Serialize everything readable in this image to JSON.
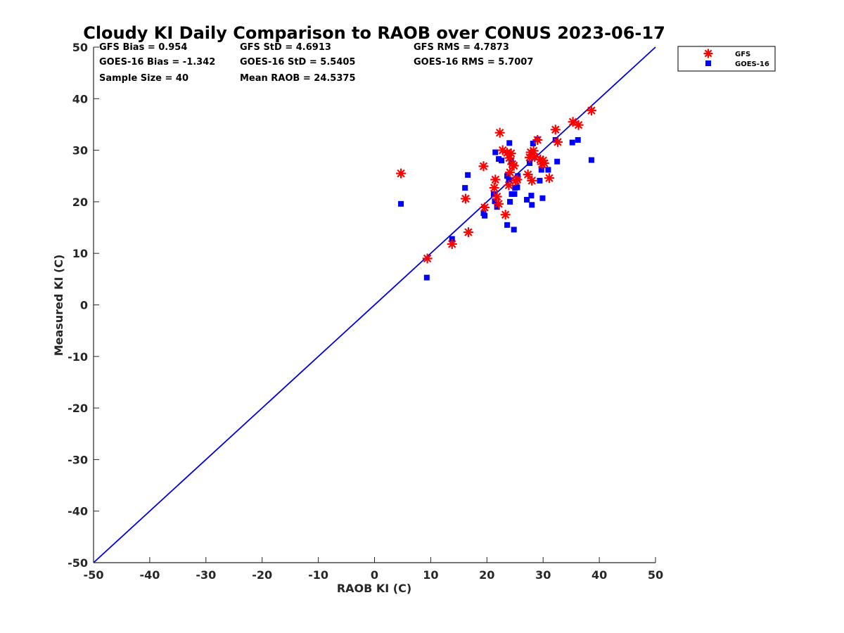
{
  "chart_data": {
    "type": "scatter",
    "title": "Cloudy KI Daily Comparison to RAOB over CONUS 2023-06-17",
    "xlabel": "RAOB KI (C)",
    "ylabel": "Measured KI (C)",
    "xlim": [
      -50,
      50
    ],
    "ylim": [
      -50,
      50
    ],
    "xticks": [
      "-50",
      "-40",
      "-30",
      "-20",
      "-10",
      "0",
      "10",
      "20",
      "30",
      "40",
      "50"
    ],
    "yticks": [
      "50",
      "40",
      "30",
      "20",
      "10",
      "0",
      "-10",
      "-20",
      "-30",
      "-40",
      "-50"
    ],
    "grid": false,
    "legend_position": "outside top-right",
    "reference_line": {
      "x": [
        -50,
        50
      ],
      "y": [
        -50,
        50
      ],
      "color": "#0000dd"
    },
    "stats": [
      "GFS Bias = 0.954",
      "GFS StD = 4.6913",
      "GFS RMS = 4.7873",
      "GOES-16 Bias = -1.342",
      "GOES-16 StD = 5.5405",
      "GOES-16 RMS = 5.7007",
      "Sample Size = 40",
      "Mean RAOB = 24.5375"
    ],
    "series": [
      {
        "name": "GFS",
        "marker": "asterisk",
        "color": "#ff0000",
        "points": [
          [
            4.7,
            25.5
          ],
          [
            9.4,
            9.0
          ],
          [
            13.8,
            11.8
          ],
          [
            16.2,
            20.6
          ],
          [
            16.7,
            14.1
          ],
          [
            19.4,
            26.9
          ],
          [
            19.6,
            18.9
          ],
          [
            21.3,
            22.7
          ],
          [
            21.5,
            24.3
          ],
          [
            21.8,
            21.0
          ],
          [
            22.1,
            19.6
          ],
          [
            22.3,
            33.4
          ],
          [
            22.8,
            30.0
          ],
          [
            23.3,
            17.5
          ],
          [
            23.6,
            29.5
          ],
          [
            23.9,
            23.2
          ],
          [
            24.1,
            25.7
          ],
          [
            24.3,
            29.4
          ],
          [
            24.5,
            27.3
          ],
          [
            24.8,
            27.0
          ],
          [
            25.1,
            24.1
          ],
          [
            25.4,
            24.3
          ],
          [
            27.3,
            25.3
          ],
          [
            27.6,
            28.6
          ],
          [
            27.8,
            29.6
          ],
          [
            28.0,
            24.1
          ],
          [
            28.3,
            29.9
          ],
          [
            28.5,
            28.7
          ],
          [
            29.0,
            32.0
          ],
          [
            29.5,
            28.2
          ],
          [
            29.8,
            27.3
          ],
          [
            30.0,
            28.0
          ],
          [
            30.2,
            27.5
          ],
          [
            31.1,
            24.6
          ],
          [
            32.2,
            34.0
          ],
          [
            32.6,
            31.6
          ],
          [
            35.3,
            35.5
          ],
          [
            36.3,
            34.9
          ],
          [
            38.6,
            37.7
          ],
          [
            24.0,
            28.5
          ]
        ]
      },
      {
        "name": "GOES-16",
        "marker": "square",
        "color": "#0000ff",
        "points": [
          [
            4.7,
            19.6
          ],
          [
            9.3,
            5.3
          ],
          [
            13.8,
            12.8
          ],
          [
            16.1,
            22.7
          ],
          [
            16.6,
            25.2
          ],
          [
            19.4,
            17.8
          ],
          [
            19.6,
            17.3
          ],
          [
            21.2,
            21.5
          ],
          [
            21.4,
            20.1
          ],
          [
            21.5,
            29.6
          ],
          [
            21.8,
            19.0
          ],
          [
            22.1,
            28.3
          ],
          [
            22.6,
            28.0
          ],
          [
            23.6,
            15.5
          ],
          [
            23.9,
            24.3
          ],
          [
            24.1,
            20.0
          ],
          [
            24.0,
            31.4
          ],
          [
            24.3,
            27.9
          ],
          [
            24.4,
            21.5
          ],
          [
            24.8,
            14.6
          ],
          [
            24.9,
            21.5
          ],
          [
            25.0,
            22.7
          ],
          [
            25.4,
            22.8
          ],
          [
            25.5,
            25.0
          ],
          [
            27.1,
            20.4
          ],
          [
            27.6,
            27.5
          ],
          [
            27.9,
            21.2
          ],
          [
            28.0,
            19.4
          ],
          [
            28.2,
            31.3
          ],
          [
            29.0,
            32.1
          ],
          [
            29.4,
            24.1
          ],
          [
            29.7,
            26.2
          ],
          [
            29.9,
            20.7
          ],
          [
            30.9,
            26.2
          ],
          [
            32.2,
            32.0
          ],
          [
            32.5,
            27.8
          ],
          [
            35.2,
            31.5
          ],
          [
            36.2,
            32.0
          ],
          [
            38.6,
            28.1
          ],
          [
            23.6,
            25.0
          ]
        ]
      }
    ]
  }
}
